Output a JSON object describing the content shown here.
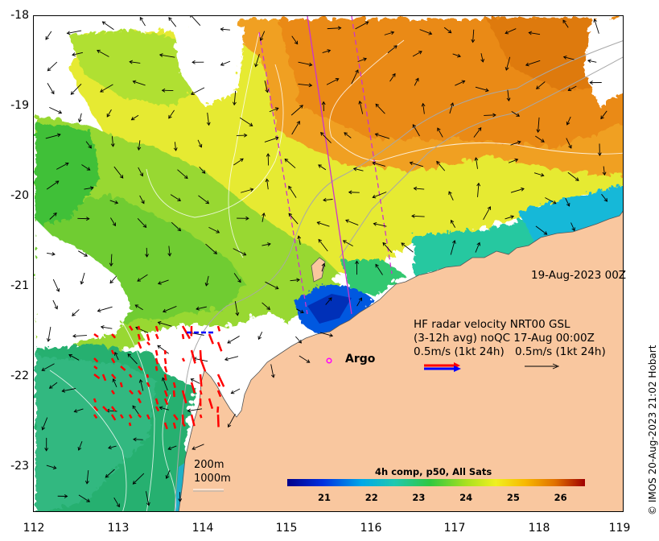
{
  "map": {
    "y_ticks": [
      "-18",
      "-19",
      "-20",
      "-21",
      "-22",
      "-23"
    ],
    "x_ticks": [
      "112",
      "113",
      "114",
      "115",
      "116",
      "117",
      "118",
      "119"
    ],
    "longitude_range": [
      112,
      119
    ],
    "latitude_range": [
      -23.5,
      -18
    ],
    "date_stamp": "19-Aug-2023 00Z",
    "legend": {
      "line1": "HF radar velocity  NRT00 GSL",
      "line2": "(3-12h avg) noQC 17-Aug 00:00Z",
      "line3_left": "0.5m/s (1kt 24h)",
      "line3_right": "0.5m/s (1kt 24h)"
    },
    "argo_label": "Argo",
    "contours": {
      "line1": "200m",
      "line2": "1000m"
    },
    "colorbar": {
      "title": "4h comp, p50, All Sats",
      "ticks": [
        "21",
        "22",
        "23",
        "24",
        "25",
        "26"
      ],
      "range": [
        20.2,
        26.5
      ]
    },
    "credit": "© IMOS 20-Aug-2023 21:02 Hobart",
    "colors": {
      "land": "#f9c79f",
      "radar_arrow": "#ff0000",
      "legend_arrow_blue": "#0000ff",
      "glider_track": "#cc33cc",
      "argo_marker": "#ff00ff"
    }
  }
}
